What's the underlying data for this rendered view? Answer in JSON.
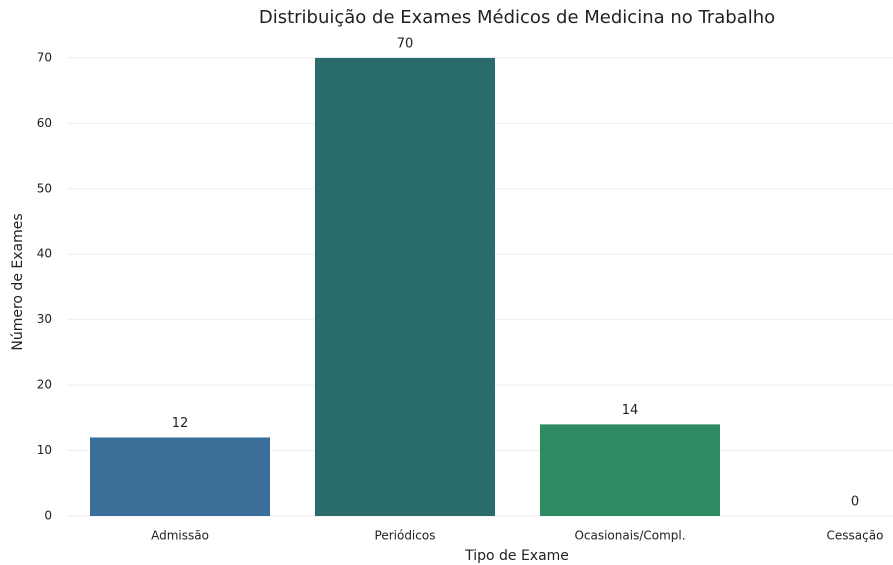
{
  "chart_data": {
    "type": "bar",
    "title": "Distribuição de Exames Médicos de Medicina no Trabalho",
    "xlabel": "Tipo de Exame",
    "ylabel": "Número de Exames",
    "categories": [
      "Admissão",
      "Periódicos",
      "Ocasionais/Compl.",
      "Cessação"
    ],
    "values": [
      12,
      70,
      14,
      0
    ],
    "colors": [
      "#3b6e98",
      "#2a6b6c",
      "#2e8b62",
      "#5fb56a"
    ],
    "ylim": [
      0,
      73.5
    ],
    "yticks": [
      0,
      10,
      20,
      30,
      40,
      50,
      60,
      70
    ],
    "grid": true
  }
}
